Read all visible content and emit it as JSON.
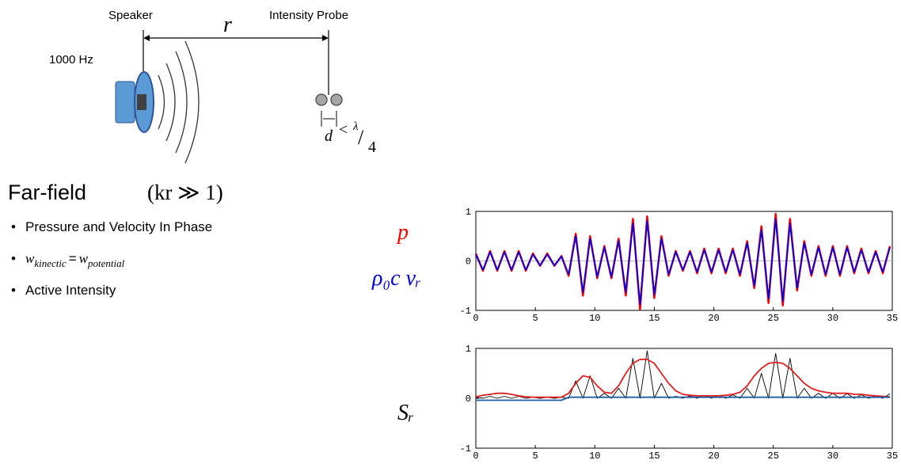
{
  "diagram": {
    "speaker_label": "Speaker",
    "probe_label": "Intensity Probe",
    "frequency": "1000 Hz",
    "distance": "r",
    "spacing": {
      "d": "d",
      "lt": "<",
      "lambda": "λ",
      "slash": "/",
      "four": "4"
    }
  },
  "text": {
    "heading": "Far-field",
    "condition": "(kr ≫ 1)",
    "bullets": [
      {
        "text": "Pressure and Velocity In Phase"
      },
      {
        "w1": "w",
        "sub1": "kinectic",
        "eq": "=",
        "w2": "w",
        "sub2": "potential"
      },
      {
        "text": "Active Intensity"
      }
    ]
  },
  "chart_data": [
    {
      "type": "line",
      "xlim": [
        0,
        35
      ],
      "ylim": [
        -1,
        1
      ],
      "xticks": [
        0,
        5,
        10,
        15,
        20,
        25,
        30,
        35
      ],
      "yticks": [
        -1,
        0,
        1
      ],
      "x": [
        0,
        0.6,
        1.2,
        1.8,
        2.4,
        3.0,
        3.6,
        4.2,
        4.8,
        5.4,
        6.0,
        6.6,
        7.2,
        7.8,
        8.4,
        9.0,
        9.6,
        10.2,
        10.8,
        11.4,
        12.0,
        12.6,
        13.2,
        13.8,
        14.4,
        15.0,
        15.6,
        16.2,
        16.8,
        17.4,
        18.0,
        18.6,
        19.2,
        19.8,
        20.4,
        21.0,
        21.6,
        22.2,
        22.8,
        23.4,
        24.0,
        24.6,
        25.2,
        25.8,
        26.4,
        27.0,
        27.6,
        28.2,
        28.8,
        29.4,
        30.0,
        30.6,
        31.2,
        31.8,
        32.4,
        33.0,
        33.6,
        34.2,
        34.8
      ],
      "series": [
        {
          "name": "p",
          "color": "#ff0000",
          "values": [
            0.15,
            -0.2,
            0.2,
            -0.2,
            0.2,
            -0.2,
            0.2,
            -0.2,
            0.15,
            -0.1,
            0.15,
            -0.1,
            0.1,
            -0.3,
            0.55,
            -0.7,
            0.5,
            -0.35,
            0.3,
            -0.35,
            0.45,
            -0.7,
            0.85,
            -0.98,
            0.9,
            -0.75,
            0.5,
            -0.3,
            0.2,
            -0.2,
            0.2,
            -0.25,
            0.25,
            -0.25,
            0.25,
            -0.25,
            0.25,
            -0.3,
            0.4,
            -0.55,
            0.7,
            -0.85,
            0.95,
            -0.9,
            0.85,
            -0.6,
            0.4,
            -0.3,
            0.3,
            -0.3,
            0.3,
            -0.3,
            0.3,
            -0.25,
            0.25,
            -0.25,
            0.2,
            -0.25,
            0.3
          ]
        },
        {
          "name": "ρ₀c vᵣ",
          "color": "#0000dd",
          "values": [
            0.13,
            -0.18,
            0.18,
            -0.18,
            0.18,
            -0.18,
            0.18,
            -0.18,
            0.13,
            -0.09,
            0.13,
            -0.09,
            0.09,
            -0.27,
            0.5,
            -0.63,
            0.45,
            -0.32,
            0.27,
            -0.32,
            0.4,
            -0.63,
            0.76,
            -0.88,
            0.81,
            -0.68,
            0.45,
            -0.27,
            0.18,
            -0.18,
            0.18,
            -0.22,
            0.22,
            -0.22,
            0.22,
            -0.22,
            0.22,
            -0.27,
            0.36,
            -0.5,
            0.63,
            -0.76,
            0.85,
            -0.81,
            0.76,
            -0.54,
            0.36,
            -0.27,
            0.27,
            -0.27,
            0.27,
            -0.27,
            0.27,
            -0.22,
            0.22,
            -0.22,
            0.18,
            -0.22,
            0.27
          ]
        }
      ]
    },
    {
      "type": "line",
      "xlim": [
        0,
        35
      ],
      "ylim": [
        -1,
        1
      ],
      "xticks": [
        0,
        5,
        10,
        15,
        20,
        25,
        30,
        35
      ],
      "yticks": [
        -1,
        0,
        1
      ],
      "y_label": "Sᵣ",
      "x": [
        0,
        0.6,
        1.2,
        1.8,
        2.4,
        3.0,
        3.6,
        4.2,
        4.8,
        5.4,
        6.0,
        6.6,
        7.2,
        7.8,
        8.4,
        9.0,
        9.6,
        10.2,
        10.8,
        11.4,
        12.0,
        12.6,
        13.2,
        13.8,
        14.4,
        15.0,
        15.6,
        16.2,
        16.8,
        17.4,
        18.0,
        18.6,
        19.2,
        19.8,
        20.4,
        21.0,
        21.6,
        22.2,
        22.8,
        23.4,
        24.0,
        24.6,
        25.2,
        25.8,
        26.4,
        27.0,
        27.6,
        28.2,
        28.8,
        29.4,
        30.0,
        30.6,
        31.2,
        31.8,
        32.4,
        33.0,
        33.6,
        34.2,
        34.8
      ],
      "series": [
        {
          "color": "#000000",
          "values": [
            0.02,
            0,
            0.04,
            0,
            0.04,
            0,
            0.04,
            0,
            0.02,
            0,
            0.02,
            0,
            0.02,
            0,
            0.35,
            0,
            0.45,
            0,
            0.1,
            0,
            0.2,
            0,
            0.8,
            0,
            0.95,
            0,
            0.3,
            0,
            0.04,
            0,
            0.05,
            0,
            0.06,
            0,
            0.06,
            0,
            0.07,
            0,
            0.2,
            0,
            0.5,
            0,
            0.9,
            0,
            0.8,
            0,
            0.2,
            0,
            0.1,
            0,
            0.1,
            0,
            0.09,
            0,
            0.07,
            0,
            0.05,
            0,
            0.09
          ]
        },
        {
          "color": "#e02020",
          "values": [
            0.03,
            0.06,
            0.08,
            0.1,
            0.1,
            0.08,
            0.05,
            0.03,
            0.02,
            0.02,
            0.02,
            0.02,
            0.02,
            0.1,
            0.3,
            0.45,
            0.42,
            0.25,
            0.12,
            0.1,
            0.25,
            0.5,
            0.7,
            0.78,
            0.78,
            0.7,
            0.5,
            0.3,
            0.15,
            0.08,
            0.06,
            0.05,
            0.05,
            0.05,
            0.05,
            0.06,
            0.08,
            0.12,
            0.25,
            0.45,
            0.6,
            0.7,
            0.72,
            0.7,
            0.6,
            0.45,
            0.3,
            0.2,
            0.15,
            0.12,
            0.1,
            0.1,
            0.1,
            0.08,
            0.08,
            0.06,
            0.05,
            0.04,
            0.03
          ]
        },
        {
          "color": "#1f5fa0",
          "values": [
            -0.04,
            -0.04,
            -0.04,
            -0.04,
            -0.04,
            -0.04,
            -0.04,
            -0.04,
            -0.04,
            -0.04,
            -0.04,
            -0.04,
            -0.04,
            0.02,
            0.02,
            0.02,
            0.02,
            0.02,
            0.02,
            0.02,
            0.02,
            0.02,
            0.02,
            0.02,
            0.02,
            0.02,
            0.02,
            0.02,
            0.02,
            0.02,
            0.02,
            0.02,
            0.02,
            0.02,
            0.02,
            0.02,
            0.02,
            0.02,
            0.02,
            0.02,
            0.02,
            0.02,
            0.02,
            0.02,
            0.02,
            0.02,
            0.02,
            0.02,
            0.02,
            0.02,
            0.02,
            0.02,
            0.02,
            0.02,
            0.02,
            0.02,
            0.02,
            0.02,
            0.02
          ]
        }
      ]
    }
  ]
}
